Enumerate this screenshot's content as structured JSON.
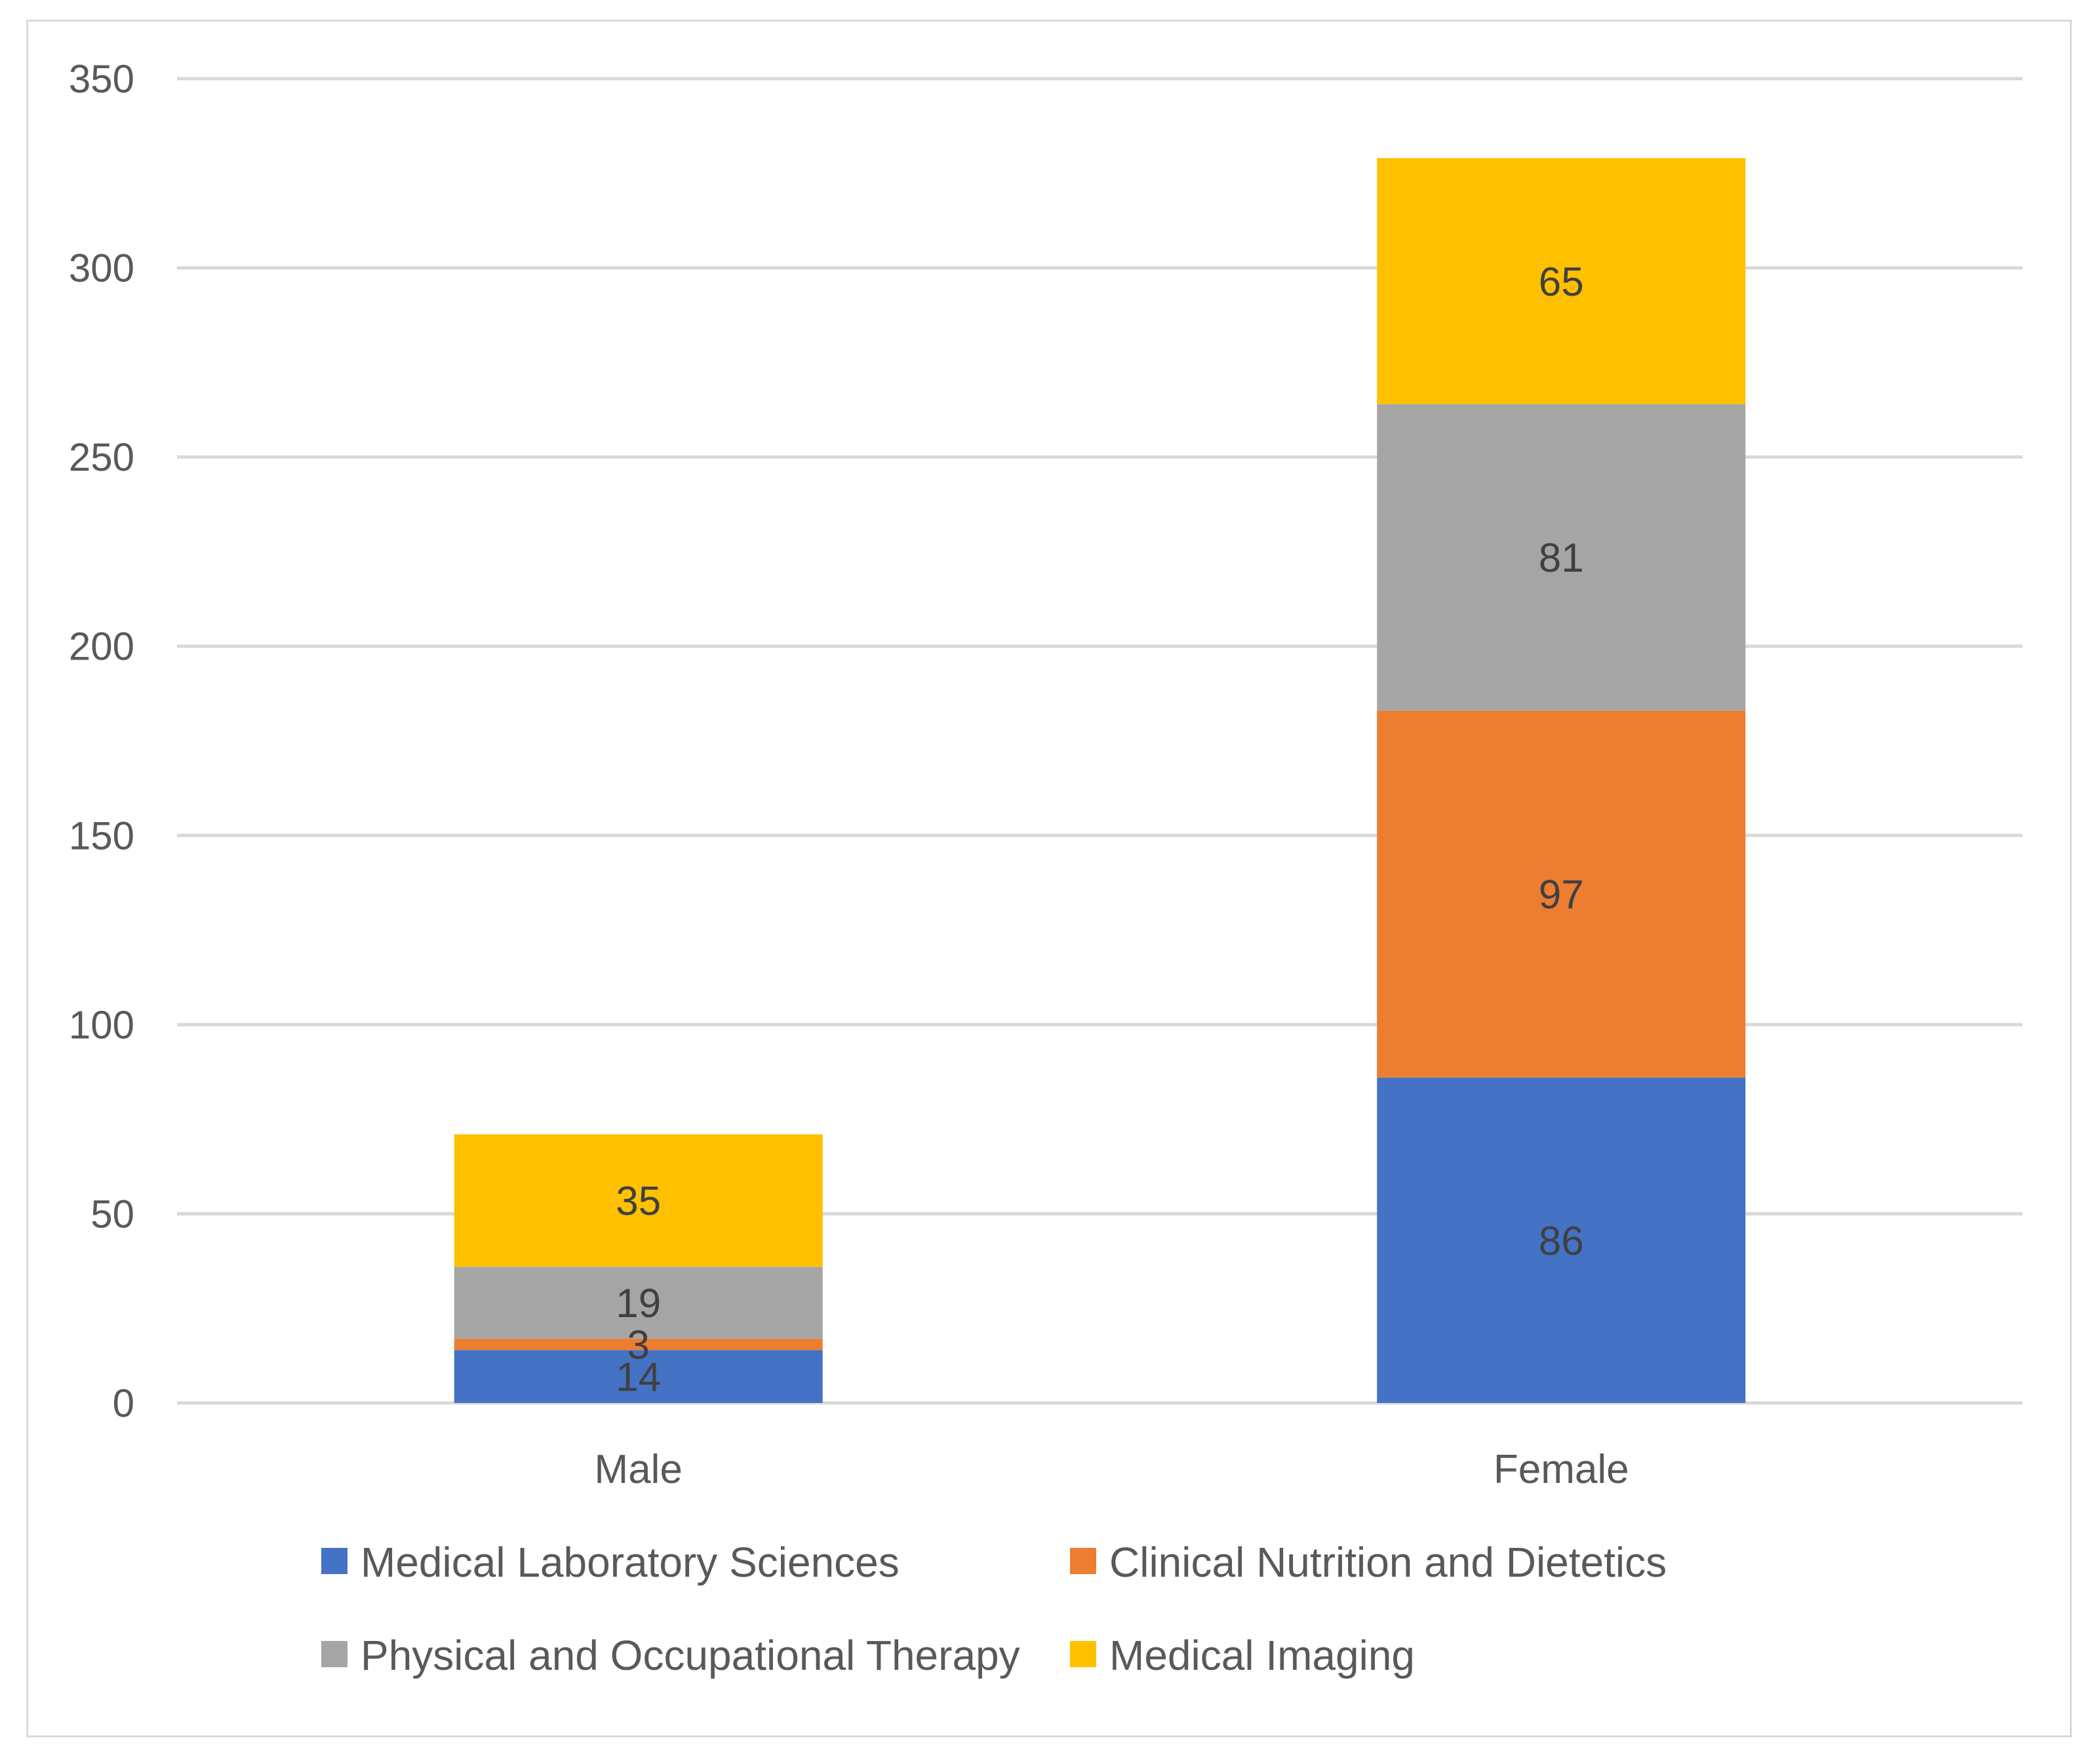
{
  "chart_data": {
    "type": "bar",
    "stacked": true,
    "title": "",
    "xlabel": "",
    "ylabel": "",
    "categories": [
      "Male",
      "Female"
    ],
    "ylim": [
      0,
      350
    ],
    "yticks": [
      0,
      50,
      100,
      150,
      200,
      250,
      300,
      350
    ],
    "grid": true,
    "legend_position": "bottom",
    "series": [
      {
        "name": "Medical Laboratory Sciences",
        "color": "#4472C4",
        "values": [
          14,
          86
        ]
      },
      {
        "name": "Clinical Nutrition and Dietetics",
        "color": "#ED7D31",
        "values": [
          3,
          97
        ]
      },
      {
        "name": "Physical and Occupational Therapy",
        "color": "#A5A5A5",
        "values": [
          19,
          81
        ]
      },
      {
        "name": "Medical Imaging",
        "color": "#FFC000",
        "values": [
          35,
          65
        ]
      }
    ]
  }
}
